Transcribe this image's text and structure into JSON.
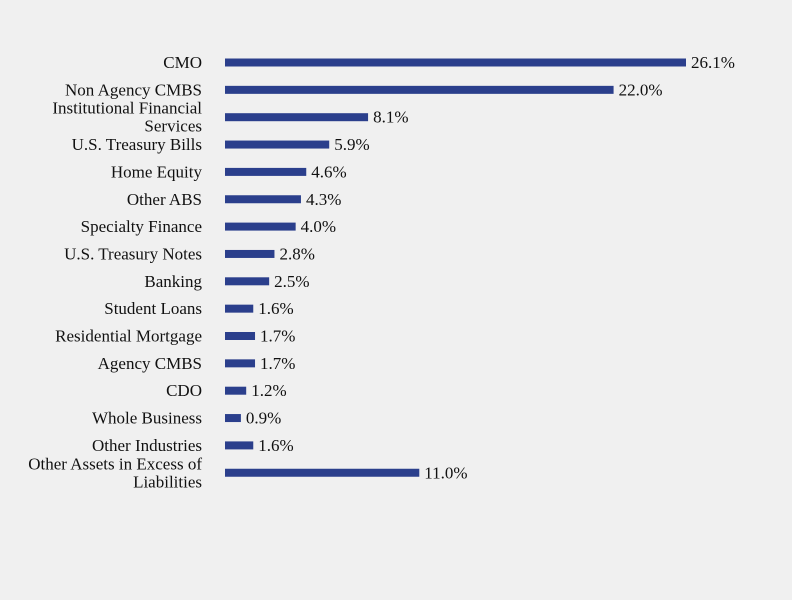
{
  "chart_data": {
    "type": "bar",
    "orientation": "horizontal",
    "title": "",
    "xlabel": "",
    "ylabel": "",
    "grid": false,
    "bar_color": "#2b3f8c",
    "background_color": "#f0f0f0",
    "xlim": [
      0,
      30
    ],
    "categories": [
      "CMO",
      "Non Agency CMBS",
      "Institutional Financial Services",
      "U.S. Treasury Bills",
      "Home Equity",
      "Other ABS",
      "Specialty Finance",
      "U.S. Treasury Notes",
      "Banking",
      "Student Loans",
      "Residential Mortgage",
      "Agency CMBS",
      "CDO",
      "Whole Business",
      "Other Industries",
      "Other Assets in Excess of Liabilities"
    ],
    "category_lines": [
      [
        "CMO"
      ],
      [
        "Non Agency CMBS"
      ],
      [
        "Institutional Financial",
        "Services"
      ],
      [
        "U.S. Treasury Bills"
      ],
      [
        "Home Equity"
      ],
      [
        "Other ABS"
      ],
      [
        "Specialty Finance"
      ],
      [
        "U.S. Treasury Notes"
      ],
      [
        "Banking"
      ],
      [
        "Student Loans"
      ],
      [
        "Residential Mortgage"
      ],
      [
        "Agency CMBS"
      ],
      [
        "CDO"
      ],
      [
        "Whole Business"
      ],
      [
        "Other Industries"
      ],
      [
        "Other Assets in Excess of",
        "Liabilities"
      ]
    ],
    "values": [
      26.1,
      22.0,
      8.1,
      5.9,
      4.6,
      4.3,
      4.0,
      2.8,
      2.5,
      1.6,
      1.7,
      1.7,
      1.2,
      0.9,
      1.6,
      11.0
    ],
    "value_labels": [
      "26.1%",
      "22.0%",
      "8.1%",
      "5.9%",
      "4.6%",
      "4.3%",
      "4.0%",
      "2.8%",
      "2.5%",
      "1.6%",
      "1.7%",
      "1.7%",
      "1.2%",
      "0.9%",
      "1.6%",
      "11.0%"
    ]
  }
}
